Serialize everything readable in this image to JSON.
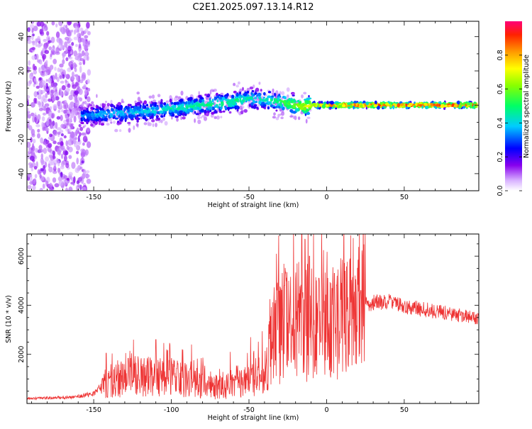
{
  "title": "C2E1.2025.097.13.14.R12",
  "chart_data": [
    {
      "type": "heatmap",
      "xlabel": "Height of straight line (km)",
      "ylabel": "Frequency (Hz)",
      "xlim": [
        -193,
        98
      ],
      "ylim": [
        -50,
        49
      ],
      "xticks": [
        -150,
        -100,
        -50,
        0,
        50
      ],
      "yticks": [
        -40,
        -20,
        0,
        20,
        40
      ],
      "colorbar": {
        "label": "Normalized spectral amplitude",
        "range": [
          0,
          1
        ],
        "ticks": [
          "0.0",
          "0.2",
          "0.4",
          "0.6",
          "0.8"
        ]
      },
      "ridge": {
        "x": [
          -155,
          -140,
          -120,
          -100,
          -80,
          -60,
          -50,
          -40,
          -30,
          -25,
          -20,
          -15,
          -10,
          0,
          20,
          50,
          97
        ],
        "y": [
          -6,
          -5,
          -4,
          -2,
          0,
          2,
          4,
          3,
          2,
          1,
          0,
          -1,
          0,
          0,
          0,
          0,
          0
        ],
        "peak_amplitude": [
          0.35,
          0.4,
          0.4,
          0.45,
          0.5,
          0.5,
          0.45,
          0.45,
          0.55,
          0.6,
          0.65,
          0.7,
          0.8,
          0.85,
          0.9,
          0.92,
          0.92
        ]
      }
    },
    {
      "type": "line",
      "xlabel": "Height of straight line (km)",
      "ylabel": "SNR (10 * v/v)",
      "xlim": [
        -193,
        98
      ],
      "ylim": [
        0,
        6900
      ],
      "xticks": [
        -150,
        -100,
        -50,
        0,
        50
      ],
      "yticks": [
        2000,
        4000,
        6000
      ],
      "color": "#ee3333",
      "envelope": {
        "x": [
          -193,
          -165,
          -150,
          -145,
          -140,
          -125,
          -110,
          -100,
          -90,
          -75,
          -70,
          -60,
          -50,
          -40,
          -35,
          -30,
          -25,
          -20,
          -15,
          -10,
          -5,
          0,
          10,
          20,
          30,
          40,
          50,
          60,
          70,
          80,
          97
        ],
        "y": [
          200,
          250,
          400,
          700,
          900,
          1100,
          1100,
          1050,
          950,
          700,
          600,
          700,
          900,
          1300,
          2500,
          3100,
          3200,
          3300,
          3400,
          3300,
          3100,
          3200,
          3600,
          3900,
          4100,
          4150,
          3950,
          3850,
          3750,
          3650,
          3450
        ]
      },
      "spikes": [
        {
          "x": -142,
          "y": 2050
        },
        {
          "x": -110,
          "y": 2600
        },
        {
          "x": -103,
          "y": 2200
        },
        {
          "x": -87,
          "y": 2400
        },
        {
          "x": -62,
          "y": 2100
        },
        {
          "x": -49,
          "y": 2700
        },
        {
          "x": -34,
          "y": 4200
        },
        {
          "x": -27,
          "y": 4800
        },
        {
          "x": -19,
          "y": 5700
        },
        {
          "x": -16,
          "y": 6900
        },
        {
          "x": -14,
          "y": 6700
        },
        {
          "x": -11,
          "y": 6000
        },
        {
          "x": -5,
          "y": 5100
        },
        {
          "x": 5,
          "y": 5300
        },
        {
          "x": 12,
          "y": 5400
        },
        {
          "x": 22,
          "y": 4600
        }
      ]
    }
  ]
}
